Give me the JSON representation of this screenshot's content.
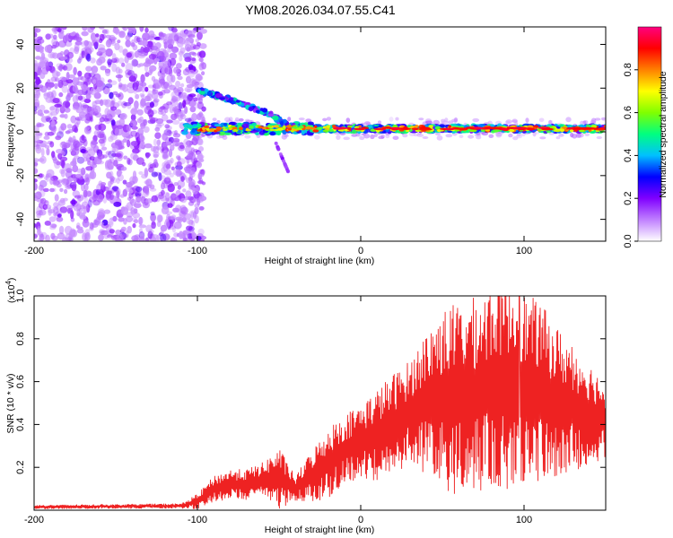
{
  "title": "YM08.2026.034.07.55.C41",
  "chart_data": [
    {
      "type": "heatmap",
      "name": "spectrogram",
      "xlabel": "Height of straight line (km)",
      "ylabel": "Frequency (Hz)",
      "xlim": [
        -200,
        150
      ],
      "ylim": [
        -50,
        48
      ],
      "xticks": [
        -200,
        -100,
        0,
        100
      ],
      "xtick_labels": [
        "-200",
        "-100",
        "0",
        "100"
      ],
      "yticks": [
        -40,
        -20,
        0,
        20,
        40
      ],
      "ytick_labels": [
        "-40",
        "-20",
        "0",
        "20",
        "40"
      ],
      "colorbar": {
        "label": "Normalized spectral amplitude",
        "range": [
          0,
          1
        ],
        "ticks": [
          0.0,
          0.2,
          0.4,
          0.6,
          0.8
        ],
        "tick_labels": [
          "0.0",
          "0.2",
          "0.4",
          "0.6",
          "0.8"
        ],
        "colors": [
          "#ffffff",
          "#c080ff",
          "#8000ff",
          "#0000ff",
          "#00c0ff",
          "#00ff80",
          "#80ff00",
          "#ffff00",
          "#ff8000",
          "#ff0000",
          "#ff0080"
        ]
      },
      "features": {
        "noise_region_x": [
          -200,
          -100
        ],
        "main_band_freq": 1.5,
        "main_band_x": [
          -108,
          150
        ],
        "side_branch": [
          [
            -100,
            19
          ],
          [
            -85,
            16
          ],
          [
            -70,
            12
          ],
          [
            -55,
            8
          ],
          [
            -45,
            3
          ]
        ],
        "downward_branch": [
          [
            -52,
            -5
          ],
          [
            -48,
            -12
          ],
          [
            -44,
            -19
          ]
        ]
      }
    },
    {
      "type": "line",
      "name": "snr",
      "xlabel": "Height of straight line (km)",
      "ylabel": "SNR (10 * v/v)",
      "multiplier_label": "(x10",
      "multiplier_exp": "4",
      "xlim": [
        -200,
        150
      ],
      "ylim": [
        0,
        1.0
      ],
      "xticks": [
        -200,
        -100,
        0,
        100
      ],
      "xtick_labels": [
        "-200",
        "-100",
        "0",
        "100"
      ],
      "yticks": [
        0.2,
        0.4,
        0.6,
        0.8,
        1.0
      ],
      "ytick_labels": [
        "0.2",
        "0.4",
        "0.6",
        "0.8",
        "1.0"
      ],
      "color": "#ee2222",
      "envelope": {
        "x": [
          -200,
          -110,
          -100,
          -90,
          -80,
          -70,
          -60,
          -50,
          -40,
          -30,
          -20,
          -10,
          0,
          10,
          20,
          30,
          40,
          50,
          60,
          70,
          80,
          90,
          100,
          110,
          120,
          130,
          140,
          150
        ],
        "mean": [
          0.015,
          0.02,
          0.04,
          0.1,
          0.12,
          0.12,
          0.14,
          0.15,
          0.1,
          0.16,
          0.22,
          0.28,
          0.32,
          0.35,
          0.4,
          0.46,
          0.5,
          0.52,
          0.52,
          0.54,
          0.58,
          0.6,
          0.56,
          0.55,
          0.5,
          0.48,
          0.45,
          0.42
        ],
        "amplitude": [
          0.008,
          0.01,
          0.03,
          0.05,
          0.06,
          0.06,
          0.07,
          0.12,
          0.05,
          0.1,
          0.14,
          0.14,
          0.15,
          0.18,
          0.2,
          0.2,
          0.28,
          0.35,
          0.38,
          0.38,
          0.4,
          0.42,
          0.38,
          0.35,
          0.3,
          0.25,
          0.2,
          0.15
        ]
      },
      "peak": {
        "x": 97,
        "y": 1.0
      }
    }
  ]
}
